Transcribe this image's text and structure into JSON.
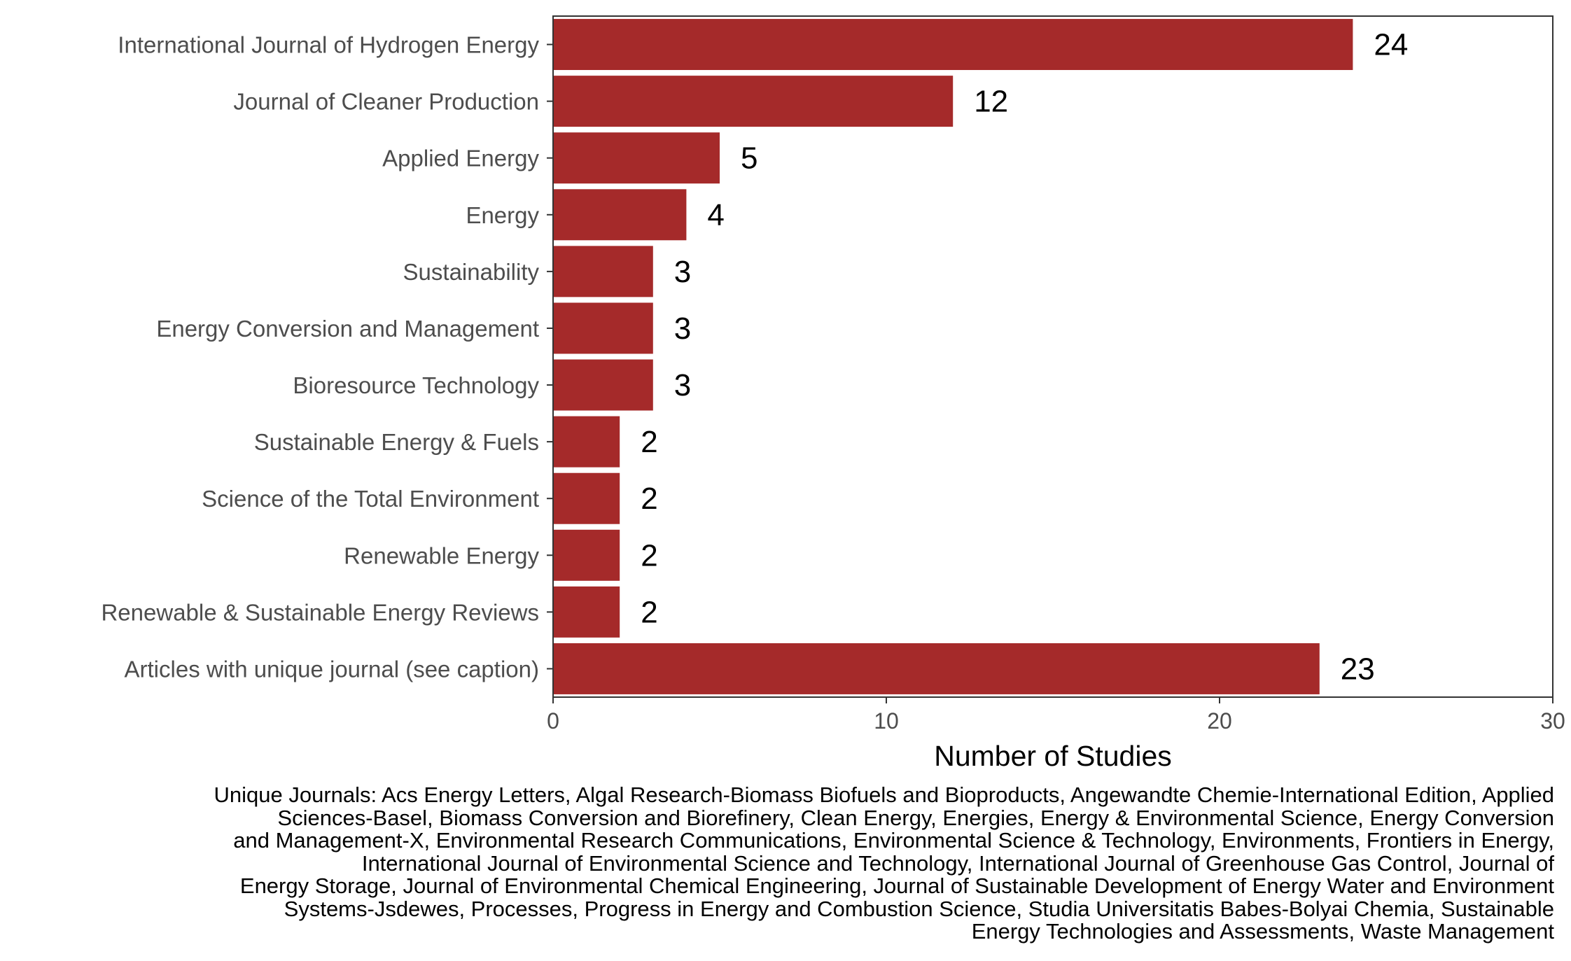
{
  "chart_data": {
    "type": "bar",
    "orientation": "horizontal",
    "categories": [
      "International Journal of Hydrogen Energy",
      "Journal of Cleaner Production",
      "Applied Energy",
      "Energy",
      "Sustainability",
      "Energy Conversion and Management",
      "Bioresource Technology",
      "Sustainable Energy & Fuels",
      "Science of the Total Environment",
      "Renewable Energy",
      "Renewable & Sustainable Energy Reviews",
      "Articles with unique journal (see caption)"
    ],
    "values": [
      24,
      12,
      5,
      4,
      3,
      3,
      3,
      2,
      2,
      2,
      2,
      23
    ],
    "data_labels": [
      "24",
      "12",
      "5",
      "4",
      "3",
      "3",
      "3",
      "2",
      "2",
      "2",
      "2",
      "23"
    ],
    "xlabel": "Number of Studies",
    "ylabel": "",
    "xlim": [
      0,
      30
    ],
    "x_ticks": [
      0,
      10,
      20,
      30
    ],
    "x_tick_labels": [
      "0",
      "10",
      "20",
      "30"
    ],
    "bar_color": "#a52a2a",
    "grid": false,
    "legend": "none"
  },
  "caption": {
    "lines": [
      "Unique Journals: Acs Energy Letters, Algal Research-Biomass Biofuels and Bioproducts, Angewandte Chemie-International Edition, Applied",
      "Sciences-Basel, Biomass Conversion and Biorefinery, Clean Energy, Energies, Energy & Environmental Science, Energy Conversion",
      "and Management-X, Environmental Research Communications, Environmental Science & Technology, Environments, Frontiers in Energy,",
      "International Journal of Environmental Science and Technology, International Journal of Greenhouse Gas Control, Journal of",
      "Energy Storage, Journal of Environmental Chemical Engineering, Journal of Sustainable Development of Energy Water and Environment",
      "Systems-Jsdewes, Processes, Progress in Energy and Combustion Science, Studia Universitatis Babes-Bolyai Chemia, Sustainable",
      "Energy Technologies and Assessments, Waste Management"
    ]
  }
}
